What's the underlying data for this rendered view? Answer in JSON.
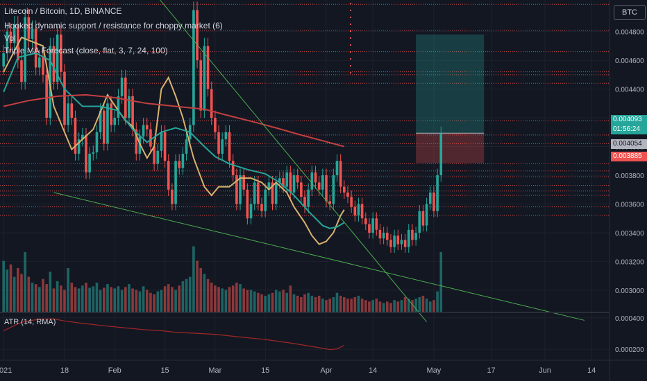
{
  "header": {
    "symbol_line": "Litecoin / Bitcoin, 1D, BINANCE",
    "indicator_1": "Hooked dynamic support / resistance for choppy market (6)",
    "indicator_2": "Vol",
    "indicator_3": "Triple MA Forecast (close, flat, 3, 7, 24, 100)"
  },
  "currency_button": "BTC",
  "atr_legend": "ATR (14, RMA)",
  "price_tags": {
    "last_price": "0.004093",
    "countdown": "01:56:24",
    "tag_2": "0.004054",
    "tag_3": "0.003885"
  },
  "colors": {
    "background": "#131722",
    "up": "#26a69a",
    "down": "#ef5350",
    "ma_fast": "#d8b26e",
    "ma_mid": "#26a69a",
    "ma_slow": "#c44040",
    "trendline": "#4caf50",
    "atr": "#a12727",
    "level_line": "#ef5350"
  },
  "chart_data": [
    {
      "type": "candlestick",
      "title": "Litecoin / Bitcoin, 1D, BINANCE",
      "y_axis_ticks": [
        0.003,
        0.0032,
        0.0034,
        0.0036,
        0.0038,
        0.004,
        0.0042,
        0.0044,
        0.0046,
        0.0048
      ],
      "y_axis_tick_labels": [
        "0.003000",
        "0.003200",
        "0.003400",
        "0.003600",
        "0.003800",
        "0.004000",
        "0.004200",
        "0.004400",
        "0.004600",
        "0.004800"
      ],
      "ylim": [
        0.00285,
        0.00502
      ],
      "x_axis_tick_labels": [
        "2021",
        "18",
        "Feb",
        "15",
        "Mar",
        "15",
        "Apr",
        "14",
        "May",
        "17",
        "Jun",
        "14"
      ],
      "x_axis_tick_dates": [
        "2021-01-01",
        "2021-01-18",
        "2021-02-01",
        "2021-02-15",
        "2021-03-01",
        "2021-03-15",
        "2021-04-01",
        "2021-04-14",
        "2021-05-01",
        "2021-05-17",
        "2021-06-01",
        "2021-06-14"
      ],
      "xlim": [
        "2020-12-31",
        "2021-06-19"
      ],
      "closes": [
        0.00465,
        0.0048,
        0.00472,
        0.00485,
        0.0046,
        0.00445,
        0.0049,
        0.00475,
        0.00482,
        0.00455,
        0.00462,
        0.0045,
        0.0042,
        0.0047,
        0.00445,
        0.00478,
        0.00452,
        0.00415,
        0.0043,
        0.0042,
        0.00395,
        0.00405,
        0.00408,
        0.00382,
        0.00395,
        0.00396,
        0.0041,
        0.00425,
        0.00402,
        0.0043,
        0.00415,
        0.0042,
        0.00435,
        0.00448,
        0.0042,
        0.00435,
        0.00412,
        0.00395,
        0.00407,
        0.00415,
        0.00412,
        0.004,
        0.00388,
        0.00397,
        0.0041,
        0.0039,
        0.0037,
        0.0036,
        0.0039,
        0.00385,
        0.00395,
        0.00405,
        0.00415,
        0.00495,
        0.0046,
        0.00425,
        0.0047,
        0.0044,
        0.0042,
        0.0041,
        0.00395,
        0.00405,
        0.0041,
        0.0039,
        0.0038,
        0.0036,
        0.0038,
        0.0037,
        0.0035,
        0.0036,
        0.00375,
        0.0036,
        0.00355,
        0.0037,
        0.00375,
        0.0036,
        0.00375,
        0.00378,
        0.00372,
        0.00382,
        0.00368,
        0.0038,
        0.00375,
        0.00365,
        0.00358,
        0.0037,
        0.00382,
        0.00375,
        0.0037,
        0.0038,
        0.00362,
        0.0036,
        0.0038,
        0.0039,
        0.00372,
        0.00368,
        0.00365,
        0.00358,
        0.00352,
        0.0036,
        0.0035,
        0.00346,
        0.0034,
        0.0035,
        0.00342,
        0.00336,
        0.0034,
        0.00335,
        0.0033,
        0.00338,
        0.00332,
        0.00335,
        0.0033,
        0.00342,
        0.00335,
        0.0034,
        0.00355,
        0.00345,
        0.0036,
        0.00368,
        0.00355,
        0.0038,
        0.00409
      ],
      "lines": [
        {
          "key": "ma_fast",
          "color": "#d8b26e",
          "points": [
            [
              "2021-01-01",
              0.00452
            ],
            [
              "2021-01-06",
              0.00476
            ],
            [
              "2021-01-12",
              0.0047
            ],
            [
              "2021-01-15",
              0.00428
            ],
            [
              "2021-01-20",
              0.00398
            ],
            [
              "2021-01-26",
              0.00412
            ],
            [
              "2021-01-30",
              0.00436
            ],
            [
              "2021-02-02",
              0.00425
            ],
            [
              "2021-02-04",
              0.00418
            ],
            [
              "2021-02-06",
              0.00414
            ],
            [
              "2021-02-08",
              0.00402
            ],
            [
              "2021-02-10",
              0.00392
            ],
            [
              "2021-02-12",
              0.004
            ],
            [
              "2021-02-14",
              0.0044
            ],
            [
              "2021-02-16",
              0.00448
            ],
            [
              "2021-02-18",
              0.00435
            ],
            [
              "2021-02-20",
              0.0042
            ],
            [
              "2021-02-23",
              0.00392
            ],
            [
              "2021-02-26",
              0.00372
            ],
            [
              "2021-02-28",
              0.00366
            ],
            [
              "2021-03-02",
              0.00372
            ],
            [
              "2021-03-05",
              0.00372
            ],
            [
              "2021-03-08",
              0.00378
            ],
            [
              "2021-03-11",
              0.00378
            ],
            [
              "2021-03-14",
              0.00375
            ],
            [
              "2021-03-16",
              0.0037
            ],
            [
              "2021-03-18",
              0.00375
            ],
            [
              "2021-03-21",
              0.00368
            ],
            [
              "2021-03-23",
              0.00358
            ],
            [
              "2021-03-26",
              0.00347
            ],
            [
              "2021-03-28",
              0.00338
            ],
            [
              "2021-03-30",
              0.00332
            ],
            [
              "2021-04-01",
              0.00334
            ],
            [
              "2021-04-03",
              0.0034
            ],
            [
              "2021-04-05",
              0.00352
            ],
            [
              "2021-04-06",
              0.00356
            ]
          ]
        },
        {
          "key": "ma_mid",
          "color": "#26a69a",
          "points": [
            [
              "2021-01-01",
              0.00438
            ],
            [
              "2021-01-05",
              0.00462
            ],
            [
              "2021-01-10",
              0.00465
            ],
            [
              "2021-01-14",
              0.0046
            ],
            [
              "2021-01-18",
              0.0044
            ],
            [
              "2021-01-23",
              0.00428
            ],
            [
              "2021-01-28",
              0.00428
            ],
            [
              "2021-02-02",
              0.00425
            ],
            [
              "2021-02-06",
              0.00412
            ],
            [
              "2021-02-10",
              0.00403
            ],
            [
              "2021-02-14",
              0.0041
            ],
            [
              "2021-02-18",
              0.00413
            ],
            [
              "2021-02-22",
              0.0041
            ],
            [
              "2021-02-26",
              0.004
            ],
            [
              "2021-03-01",
              0.00393
            ],
            [
              "2021-03-05",
              0.00388
            ],
            [
              "2021-03-10",
              0.00384
            ],
            [
              "2021-03-15",
              0.00381
            ],
            [
              "2021-03-19",
              0.00375
            ],
            [
              "2021-03-23",
              0.00366
            ],
            [
              "2021-03-27",
              0.00355
            ],
            [
              "2021-03-31",
              0.00345
            ],
            [
              "2021-04-02",
              0.00343
            ],
            [
              "2021-04-04",
              0.00344
            ],
            [
              "2021-04-06",
              0.00347
            ]
          ]
        },
        {
          "key": "ma_slow",
          "color": "#c44040",
          "points": [
            [
              "2021-01-01",
              0.00428
            ],
            [
              "2021-01-08",
              0.00432
            ],
            [
              "2021-01-16",
              0.00435
            ],
            [
              "2021-01-24",
              0.00436
            ],
            [
              "2021-02-01",
              0.00434
            ],
            [
              "2021-02-10",
              0.0043
            ],
            [
              "2021-02-18",
              0.00428
            ],
            [
              "2021-02-26",
              0.00426
            ],
            [
              "2021-03-04",
              0.00422
            ],
            [
              "2021-03-12",
              0.00417
            ],
            [
              "2021-03-18",
              0.00413
            ],
            [
              "2021-03-25",
              0.00408
            ],
            [
              "2021-03-31",
              0.00404
            ],
            [
              "2021-04-03",
              0.00402
            ],
            [
              "2021-04-06",
              0.004
            ]
          ]
        }
      ],
      "trendlines": [
        {
          "from": [
            "2021-02-11",
            0.0051
          ],
          "to": [
            "2021-04-29",
            0.00278
          ]
        },
        {
          "from": [
            "2021-01-15",
            0.00368
          ],
          "to": [
            "2021-06-12",
            0.00279
          ]
        }
      ],
      "horizontal_levels": [
        0.00499,
        0.00481,
        0.00466,
        0.00452,
        0.0045,
        0.00444,
        0.00418,
        0.00408,
        0.00402,
        0.00388,
        0.00383,
        0.00379,
        0.00373,
        0.00369,
        0.00366,
        0.00358,
        0.00352
      ],
      "position_box": {
        "from_date": "2021-04-26",
        "to_date": "2021-05-15",
        "profit_zone": [
          0.004093,
          0.00478
        ],
        "loss_zone": [
          0.003885,
          0.004093
        ]
      },
      "volume": [
        70,
        58,
        65,
        48,
        60,
        52,
        82,
        48,
        40,
        38,
        34,
        45,
        38,
        55,
        32,
        42,
        36,
        30,
        60,
        40,
        34,
        32,
        36,
        40,
        33,
        35,
        40,
        30,
        33,
        38,
        34,
        32,
        35,
        30,
        34,
        38,
        32,
        30,
        28,
        35,
        30,
        26,
        24,
        28,
        30,
        35,
        38,
        34,
        30,
        36,
        42,
        45,
        48,
        90,
        70,
        60,
        52,
        45,
        40,
        36,
        34,
        32,
        30,
        34,
        36,
        40,
        38,
        32,
        30,
        30,
        28,
        26,
        24,
        22,
        24,
        26,
        30,
        28,
        30,
        26,
        36,
        24,
        22,
        20,
        24,
        26,
        22,
        20,
        22,
        18,
        16,
        18,
        20,
        26,
        22,
        20,
        18,
        18,
        20,
        22,
        18,
        16,
        14,
        16,
        18,
        14,
        12,
        14,
        12,
        16,
        14,
        16,
        20,
        18,
        16,
        18,
        20,
        22,
        18,
        14,
        16,
        28,
        82
      ],
      "volume_max": 100
    },
    {
      "type": "line",
      "title": "ATR (14, RMA)",
      "y_axis_ticks": [
        0.0002,
        0.0004
      ],
      "y_axis_tick_labels": [
        "0.000200",
        "0.000400"
      ],
      "ylim": [
        0.00013,
        0.00043
      ],
      "series": [
        {
          "color": "#a12727",
          "points": [
            [
              "2021-01-01",
              0.000318
            ],
            [
              "2021-01-06",
              0.000372
            ],
            [
              "2021-01-11",
              0.000392
            ],
            [
              "2021-01-15",
              0.000393
            ],
            [
              "2021-01-18",
              0.00038
            ],
            [
              "2021-01-22",
              0.000368
            ],
            [
              "2021-01-28",
              0.000352
            ],
            [
              "2021-02-03",
              0.000338
            ],
            [
              "2021-02-09",
              0.000325
            ],
            [
              "2021-02-14",
              0.000318
            ],
            [
              "2021-02-18",
              0.000308
            ],
            [
              "2021-02-23",
              0.000302
            ],
            [
              "2021-03-01",
              0.000295
            ],
            [
              "2021-03-08",
              0.000278
            ],
            [
              "2021-03-15",
              0.000262
            ],
            [
              "2021-03-22",
              0.00024
            ],
            [
              "2021-03-28",
              0.000218
            ],
            [
              "2021-04-02",
              0.000198
            ],
            [
              "2021-04-04",
              0.000202
            ],
            [
              "2021-04-06",
              0.000225
            ]
          ]
        }
      ]
    }
  ]
}
